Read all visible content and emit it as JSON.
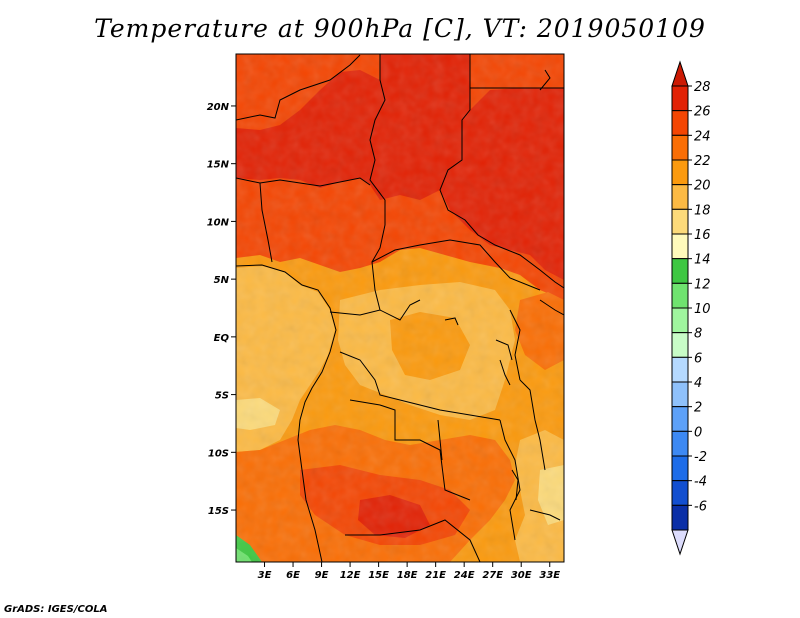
{
  "title": "Temperature at 900hPa [C], VT: 2019050109",
  "credit": "GrADS: IGES/COLA",
  "map": {
    "lon_range": [
      0,
      34.5
    ],
    "lat_range": [
      -19.5,
      24.5
    ],
    "lon_ticks": [
      "3E",
      "6E",
      "9E",
      "12E",
      "15E",
      "18E",
      "21E",
      "24E",
      "27E",
      "30E",
      "33E"
    ],
    "lat_ticks": [
      "20N",
      "15N",
      "10N",
      "5N",
      "EQ",
      "5S",
      "10S",
      "15S"
    ],
    "ocean_color": "#fcba44"
  },
  "colorbar": {
    "labels": [
      "28",
      "26",
      "24",
      "22",
      "20",
      "18",
      "16",
      "14",
      "12",
      "10",
      "8",
      "6",
      "4",
      "2",
      "0",
      "-2",
      "-4",
      "-6"
    ],
    "colors": [
      "#e22205",
      "#f44603",
      "#fa6e05",
      "#fb9a0e",
      "#fcba44",
      "#fcda7a",
      "#fffabb",
      "#3ec742",
      "#6fe36f",
      "#9ff59e",
      "#c8fcc7",
      "#b5d9ff",
      "#8fc1fb",
      "#5ea1f8",
      "#3d89f3",
      "#1d6ce8",
      "#124fd0",
      "#0a2fa7",
      "#08127a"
    ],
    "top_triangle_color": "#cc1a04",
    "bottom_triangle_color": "#dcdcfc"
  }
}
